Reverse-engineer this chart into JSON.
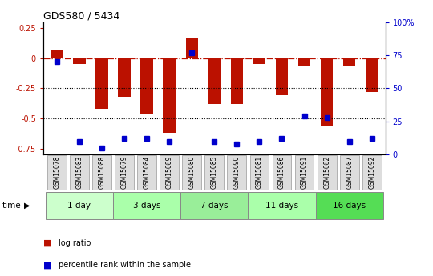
{
  "title": "GDS580 / 5434",
  "samples": [
    "GSM15078",
    "GSM15083",
    "GSM15088",
    "GSM15079",
    "GSM15084",
    "GSM15089",
    "GSM15080",
    "GSM15085",
    "GSM15090",
    "GSM15081",
    "GSM15086",
    "GSM15091",
    "GSM15082",
    "GSM15087",
    "GSM15092"
  ],
  "log_ratio": [
    0.07,
    -0.05,
    -0.42,
    -0.32,
    -0.46,
    -0.62,
    0.17,
    -0.38,
    -0.38,
    -0.05,
    -0.31,
    -0.06,
    -0.56,
    -0.06,
    -0.28
  ],
  "percentile": [
    70,
    10,
    5,
    12,
    12,
    10,
    77,
    10,
    8,
    10,
    12,
    29,
    28,
    10,
    12
  ],
  "groups": [
    {
      "label": "1 day",
      "indices": [
        0,
        1,
        2
      ],
      "color": "#ccffcc"
    },
    {
      "label": "3 days",
      "indices": [
        3,
        4,
        5
      ],
      "color": "#aaffaa"
    },
    {
      "label": "7 days",
      "indices": [
        6,
        7,
        8
      ],
      "color": "#99ee99"
    },
    {
      "label": "11 days",
      "indices": [
        9,
        10,
        11
      ],
      "color": "#aaffaa"
    },
    {
      "label": "16 days",
      "indices": [
        12,
        13,
        14
      ],
      "color": "#55dd55"
    }
  ],
  "bar_color": "#bb1100",
  "dot_color": "#0000cc",
  "ylim_left": [
    -0.8,
    0.3
  ],
  "ylim_right": [
    0,
    100
  ],
  "background_color": "#ffffff",
  "plot_bg": "#ffffff",
  "legend_items": [
    "log ratio",
    "percentile rank within the sample"
  ],
  "left_yticks": [
    -0.75,
    -0.5,
    -0.25,
    0,
    0.25
  ],
  "right_yticks": [
    0,
    25,
    50,
    75,
    100
  ],
  "right_yticklabels": [
    "0",
    "25",
    "50",
    "75",
    "100%"
  ]
}
